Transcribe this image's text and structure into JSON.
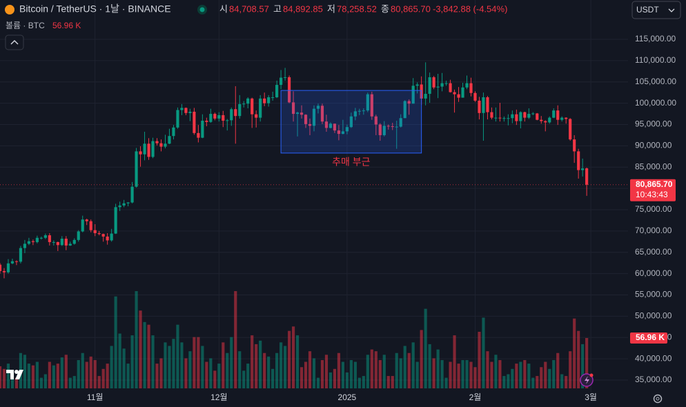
{
  "header": {
    "symbol": "Bitcoin / TetherUS · 1날 · BINANCE",
    "open_key": "시",
    "open_label": "84,708.57",
    "high_key": "고",
    "high_label": "84,892.85",
    "low_key": "저",
    "low_label": "78,258.52",
    "close_key": "종",
    "close_label": "80,865.70",
    "change_label": "-3,842.88 (-4.54%)",
    "volume_title": "볼륨 · BTC",
    "volume_label": "56.96 K",
    "currency": "USDT"
  },
  "chart_data": {
    "type": "candlestick",
    "up_color": "#089981",
    "down_color": "#f23645",
    "grid": true,
    "xlim": [
      0,
      152
    ],
    "ylim": [
      32250,
      124230
    ],
    "xticks": [
      {
        "value": 23,
        "label": "11월"
      },
      {
        "value": 53,
        "label": "12월"
      },
      {
        "value": 84,
        "label": "2025"
      },
      {
        "value": 115,
        "label": "2월"
      },
      {
        "value": 143,
        "label": "3월"
      }
    ],
    "yticks": [
      {
        "value": 35000,
        "label": "35,000.00"
      },
      {
        "value": 40000,
        "label": "40,000.00"
      },
      {
        "value": 45000,
        "label": "45,000.00"
      },
      {
        "value": 50000,
        "label": "50,000.00"
      },
      {
        "value": 55000,
        "label": "55,000.00"
      },
      {
        "value": 60000,
        "label": "60,000.00"
      },
      {
        "value": 65000,
        "label": "65,000.00"
      },
      {
        "value": 70000,
        "label": "70,000.00"
      },
      {
        "value": 75000,
        "label": "75,000.00"
      },
      {
        "value": 80000,
        "label": "80,000.00"
      },
      {
        "value": 85000,
        "label": "85,000.00"
      },
      {
        "value": 90000,
        "label": "90,000.00"
      },
      {
        "value": 95000,
        "label": "95,000.00"
      },
      {
        "value": 100000,
        "label": "100,000.00"
      },
      {
        "value": 105000,
        "label": "105,000.00"
      },
      {
        "value": 110000,
        "label": "110,000.00"
      },
      {
        "value": 115000,
        "label": "115,000.00"
      }
    ],
    "ohlc": [
      [
        62100,
        62500,
        60000,
        60600
      ],
      [
        60600,
        61300,
        58900,
        60300
      ],
      [
        60300,
        63400,
        60000,
        62400
      ],
      [
        62400,
        63500,
        62200,
        62900
      ],
      [
        62900,
        63100,
        62000,
        62800
      ],
      [
        62800,
        66500,
        62400,
        66000
      ],
      [
        66000,
        67900,
        64800,
        67000
      ],
      [
        67000,
        68400,
        66700,
        67600
      ],
      [
        67600,
        68000,
        66700,
        67400
      ],
      [
        67400,
        68900,
        67100,
        68400
      ],
      [
        68400,
        68700,
        68000,
        68400
      ],
      [
        68400,
        69400,
        68100,
        69000
      ],
      [
        69000,
        69500,
        66600,
        67400
      ],
      [
        67400,
        67800,
        66600,
        67400
      ],
      [
        67400,
        67500,
        65300,
        66700
      ],
      [
        66700,
        68800,
        66500,
        68200
      ],
      [
        68200,
        68800,
        65500,
        66600
      ],
      [
        66600,
        67500,
        66500,
        67000
      ],
      [
        67000,
        68300,
        66800,
        67900
      ],
      [
        67900,
        70200,
        67500,
        69900
      ],
      [
        69900,
        73600,
        69700,
        72700
      ],
      [
        72700,
        72900,
        71400,
        72300
      ],
      [
        72300,
        72700,
        69700,
        70200
      ],
      [
        70200,
        71600,
        68800,
        69500
      ],
      [
        69500,
        70000,
        69000,
        69300
      ],
      [
        69300,
        69400,
        67500,
        68700
      ],
      [
        68700,
        69500,
        66800,
        67800
      ],
      [
        67800,
        70500,
        67500,
        69400
      ],
      [
        69400,
        76400,
        69300,
        75600
      ],
      [
        75600,
        76900,
        74700,
        76000
      ],
      [
        76000,
        77300,
        75600,
        76500
      ],
      [
        76500,
        76800,
        75800,
        76700
      ],
      [
        76700,
        81500,
        76500,
        80400
      ],
      [
        80400,
        89500,
        80200,
        88700
      ],
      [
        88700,
        89900,
        85100,
        88000
      ],
      [
        88000,
        93300,
        86600,
        90500
      ],
      [
        90500,
        91800,
        86700,
        87400
      ],
      [
        87400,
        91900,
        87100,
        91100
      ],
      [
        91100,
        91800,
        90100,
        90600
      ],
      [
        90600,
        91500,
        88700,
        89800
      ],
      [
        89800,
        92600,
        89400,
        90500
      ],
      [
        90500,
        94000,
        90400,
        92300
      ],
      [
        92300,
        94900,
        91500,
        94300
      ],
      [
        94300,
        99000,
        94000,
        98400
      ],
      [
        98400,
        99800,
        97200,
        98900
      ],
      [
        98900,
        99000,
        97200,
        97700
      ],
      [
        97700,
        98700,
        95800,
        98000
      ],
      [
        98000,
        98900,
        92600,
        93000
      ],
      [
        93000,
        94900,
        90800,
        91900
      ],
      [
        91900,
        97400,
        91800,
        95900
      ],
      [
        95900,
        96600,
        94600,
        95600
      ],
      [
        95600,
        98700,
        95400,
        97500
      ],
      [
        97500,
        97800,
        96000,
        96400
      ],
      [
        96400,
        97900,
        95700,
        97200
      ],
      [
        97200,
        98200,
        94400,
        95900
      ],
      [
        95900,
        96300,
        93600,
        96000
      ],
      [
        96000,
        99000,
        94700,
        98600
      ],
      [
        98600,
        104000,
        90500,
        97000
      ],
      [
        97000,
        101900,
        96400,
        99800
      ],
      [
        99800,
        100500,
        99000,
        99900
      ],
      [
        99900,
        101400,
        98800,
        101100
      ],
      [
        101100,
        101300,
        94200,
        97400
      ],
      [
        97400,
        98300,
        94300,
        96600
      ],
      [
        96600,
        101900,
        95700,
        101100
      ],
      [
        101100,
        102500,
        99300,
        100000
      ],
      [
        100000,
        101900,
        99200,
        101400
      ],
      [
        101400,
        102700,
        100600,
        101400
      ],
      [
        101400,
        105300,
        101200,
        104300
      ],
      [
        104300,
        107800,
        103300,
        106000
      ],
      [
        106000,
        108300,
        105300,
        106100
      ],
      [
        106100,
        106500,
        100000,
        100200
      ],
      [
        100200,
        102800,
        95700,
        97500
      ],
      [
        97500,
        98000,
        92200,
        97800
      ],
      [
        97800,
        99500,
        96400,
        97300
      ],
      [
        97300,
        97400,
        94200,
        95100
      ],
      [
        95100,
        96400,
        92500,
        94700
      ],
      [
        94700,
        99500,
        93400,
        98700
      ],
      [
        98700,
        99900,
        97600,
        99400
      ],
      [
        99400,
        99900,
        95100,
        95700
      ],
      [
        95700,
        97300,
        93300,
        94200
      ],
      [
        94200,
        95500,
        94100,
        95200
      ],
      [
        95200,
        95200,
        93000,
        93600
      ],
      [
        93600,
        94900,
        91300,
        92800
      ],
      [
        92800,
        96100,
        92700,
        93400
      ],
      [
        93400,
        95000,
        92700,
        94400
      ],
      [
        94400,
        97800,
        94200,
        96900
      ],
      [
        96900,
        98900,
        96000,
        98100
      ],
      [
        98100,
        98700,
        97200,
        98200
      ],
      [
        98200,
        98800,
        97300,
        98300
      ],
      [
        98300,
        102500,
        97900,
        102100
      ],
      [
        102100,
        102700,
        96100,
        96900
      ],
      [
        96900,
        97300,
        92500,
        95000
      ],
      [
        95000,
        95300,
        91200,
        92500
      ],
      [
        92500,
        95800,
        92200,
        94700
      ],
      [
        94700,
        95000,
        93800,
        94600
      ],
      [
        94600,
        95400,
        93700,
        94500
      ],
      [
        94500,
        95900,
        89300,
        94500
      ],
      [
        94500,
        97400,
        94300,
        96500
      ],
      [
        96500,
        100700,
        96500,
        100500
      ],
      [
        100500,
        100900,
        97300,
        99900
      ],
      [
        99900,
        105900,
        99900,
        104100
      ],
      [
        104100,
        104900,
        102300,
        104400
      ],
      [
        104400,
        106300,
        99600,
        101100
      ],
      [
        101100,
        109600,
        99500,
        102200
      ],
      [
        102200,
        107200,
        100100,
        106100
      ],
      [
        106100,
        106400,
        103300,
        103700
      ],
      [
        103700,
        106900,
        101200,
        103900
      ],
      [
        103900,
        107100,
        102800,
        104700
      ],
      [
        104700,
        105300,
        104100,
        104700
      ],
      [
        104700,
        105500,
        102500,
        102600
      ],
      [
        102600,
        103200,
        97800,
        102100
      ],
      [
        102100,
        103800,
        100300,
        101300
      ],
      [
        101300,
        104800,
        101300,
        103700
      ],
      [
        103700,
        106500,
        103300,
        104700
      ],
      [
        104700,
        106000,
        101600,
        102400
      ],
      [
        102400,
        102800,
        100300,
        100600
      ],
      [
        100600,
        101500,
        96200,
        97700
      ],
      [
        97700,
        102500,
        91200,
        101400
      ],
      [
        101400,
        101700,
        96200,
        97900
      ],
      [
        97900,
        99000,
        96200,
        96600
      ],
      [
        96600,
        99000,
        95700,
        96600
      ],
      [
        96600,
        100100,
        95700,
        96500
      ],
      [
        96500,
        96900,
        95700,
        96500
      ],
      [
        96500,
        97400,
        94800,
        96500
      ],
      [
        96500,
        98300,
        95300,
        97400
      ],
      [
        97400,
        98500,
        94900,
        95800
      ],
      [
        95800,
        98100,
        94100,
        97900
      ],
      [
        97900,
        98000,
        95700,
        96600
      ],
      [
        96600,
        98800,
        96300,
        97500
      ],
      [
        97500,
        97900,
        97200,
        97600
      ],
      [
        97600,
        97700,
        96000,
        96100
      ],
      [
        96100,
        97000,
        95200,
        95800
      ],
      [
        95800,
        96000,
        93400,
        95500
      ],
      [
        95500,
        96900,
        95200,
        96600
      ],
      [
        96600,
        98800,
        96500,
        98300
      ],
      [
        98300,
        99500,
        94900,
        96100
      ],
      [
        96100,
        96900,
        95700,
        96600
      ],
      [
        96600,
        96700,
        95200,
        96300
      ],
      [
        96300,
        96500,
        91200,
        91500
      ],
      [
        91500,
        92500,
        86000,
        88700
      ],
      [
        88700,
        89300,
        82300,
        84300
      ],
      [
        84300,
        87000,
        82800,
        84700
      ],
      [
        84708.57,
        84892.85,
        78258.52,
        80865.7
      ]
    ],
    "volume": [
      25,
      22,
      28,
      18,
      12,
      40,
      38,
      28,
      26,
      30,
      12,
      16,
      30,
      26,
      28,
      35,
      38,
      12,
      14,
      32,
      40,
      30,
      36,
      32,
      14,
      22,
      28,
      48,
      104,
      62,
      45,
      28,
      60,
      110,
      88,
      75,
      72,
      60,
      28,
      34,
      52,
      48,
      56,
      72,
      52,
      34,
      42,
      58,
      58,
      48,
      30,
      34,
      20,
      28,
      52,
      40,
      58,
      110,
      42,
      20,
      28,
      60,
      50,
      54,
      40,
      36,
      22,
      40,
      52,
      48,
      65,
      70,
      60,
      24,
      30,
      42,
      34,
      12,
      32,
      38,
      18,
      22,
      40,
      30,
      18,
      32,
      30,
      12,
      14,
      38,
      44,
      42,
      32,
      38,
      14,
      14,
      40,
      34,
      48,
      40,
      52,
      30,
      66,
      90,
      50,
      34,
      44,
      32,
      12,
      30,
      60,
      28,
      32,
      32,
      30,
      24,
      64,
      80,
      42,
      30,
      38,
      32,
      14,
      16,
      22,
      28,
      30,
      32,
      28,
      12,
      14,
      24,
      30,
      22,
      32,
      40,
      16,
      14,
      42,
      79,
      65,
      50,
      56.96
    ],
    "last_price_label": "80,865.70",
    "countdown": "10:43:43",
    "annotation": {
      "text": "추매 부근",
      "x": [
        68,
        102
      ],
      "y": [
        88300,
        103000
      ],
      "color": "#2962ff"
    }
  }
}
